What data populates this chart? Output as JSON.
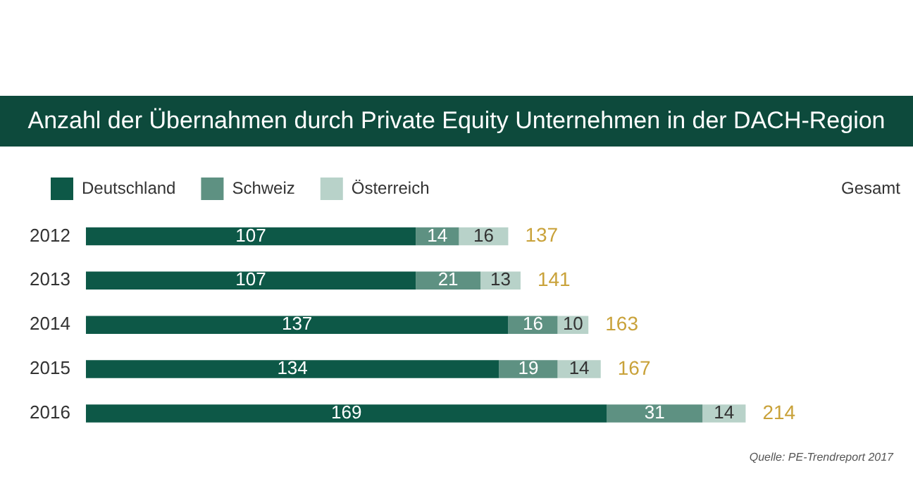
{
  "chart_data": {
    "type": "bar",
    "title": "Anzahl der Übernahmen durch Private Equity Unternehmen in der DACH-Region",
    "orientation": "horizontal",
    "stacked": true,
    "categories": [
      "2012",
      "2013",
      "2014",
      "2015",
      "2016"
    ],
    "series": [
      {
        "name": "Deutschland",
        "color": "#0d5847",
        "values": [
          107,
          107,
          137,
          134,
          169
        ]
      },
      {
        "name": "Schweiz",
        "color": "#5e9182",
        "values": [
          14,
          21,
          16,
          19,
          31
        ]
      },
      {
        "name": "Österreich",
        "color": "#b8d2c9",
        "values": [
          16,
          13,
          10,
          14,
          14
        ]
      }
    ],
    "data_labels": true,
    "totals": [
      "137",
      "141",
      "163",
      "167",
      "214"
    ],
    "legend": "top",
    "annotations": [
      "Gesamt",
      "Quelle: PE-Trendreport 2017"
    ]
  }
}
